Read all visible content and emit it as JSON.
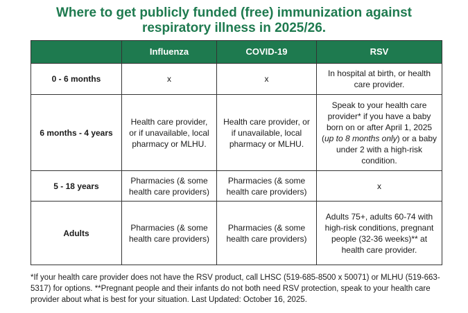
{
  "title": {
    "line1": "Where to get publicly funded (free) immunization against",
    "line2": "respiratory illness in 2025/26."
  },
  "table": {
    "headers": [
      "",
      "Influenza",
      "COVID-19",
      "RSV"
    ],
    "rows": [
      {
        "label": "0 - 6 months",
        "influenza": "x",
        "covid": "x",
        "rsv": {
          "text": "In hospital at birth, or health care provider."
        }
      },
      {
        "label": "6 months - 4 years",
        "influenza": "Health care provider, or if unavailable, local pharmacy or MLHU.",
        "covid": "Health care provider, or if unavailable, local pharmacy or MLHU.",
        "rsv": {
          "before": "Speak to your health care provider* if you have a baby born on or after April 1, 2025 (",
          "emphasis": "up to 8 months only",
          "after": ") or a baby under 2 with a high-risk condition."
        }
      },
      {
        "label": "5 - 18 years",
        "influenza": "Pharmacies (& some health care providers)",
        "covid": "Pharmacies (& some health care providers)",
        "rsv": {
          "text": "x"
        }
      },
      {
        "label": "Adults",
        "influenza": "Pharmacies (& some health care providers)",
        "covid": "Pharmacies (& some health care providers)",
        "rsv": {
          "text": "Adults 75+, adults 60-74 with high-risk conditions, pregnant people (32-36 weeks)** at health care provider."
        }
      }
    ]
  },
  "footnote": "*If your health care provider does not have the RSV product, call LHSC (519-685-8500 x 50071) or MLHU (519-663-5317) for options. **Pregnant people and their infants do not both need RSV protection, speak to your health care provider about what is best for your situation. Last Updated: October 16, 2025.",
  "colors": {
    "brand_green": "#1e7a4f",
    "border": "#333333"
  }
}
